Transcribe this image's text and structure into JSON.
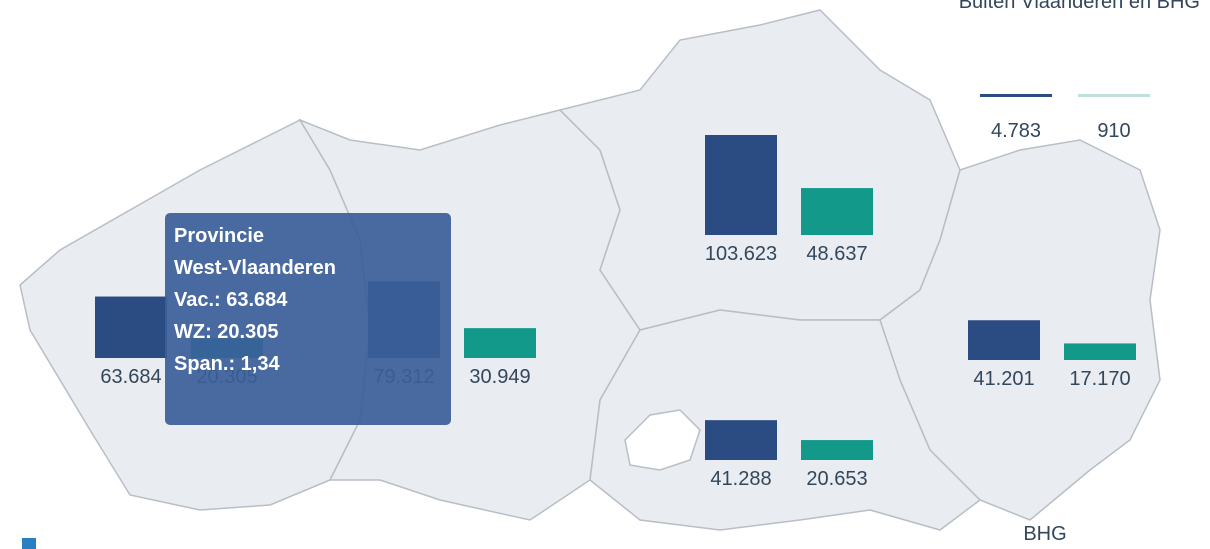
{
  "map": {
    "title": "Buiten Vlaanderen en BHG",
    "footer_label": "BHG",
    "series_colors": [
      "#2b4c82",
      "#13998a"
    ],
    "regions": [
      {
        "values": [
          63684,
          20305
        ],
        "value_labels": [
          "63.684",
          "20.305"
        ]
      },
      {
        "values": [
          79312,
          30949
        ],
        "value_labels": [
          "79.312",
          "30.949"
        ]
      },
      {
        "values": [
          103623,
          48637
        ],
        "value_labels": [
          "103.623",
          "48.637"
        ]
      },
      {
        "values": [
          41201,
          17170
        ],
        "value_labels": [
          "41.201",
          "17.170"
        ]
      },
      {
        "values": [
          41288,
          20653
        ],
        "value_labels": [
          "41.288",
          "20.653"
        ]
      }
    ],
    "outside": {
      "values": [
        4783,
        910
      ],
      "value_labels": [
        "4.783",
        "910"
      ]
    },
    "tooltip": {
      "lines": [
        "Provincie",
        "West-Vlaanderen",
        "Vac.: 63.684",
        "WZ: 20.305",
        "Span.: 1,34"
      ]
    }
  }
}
